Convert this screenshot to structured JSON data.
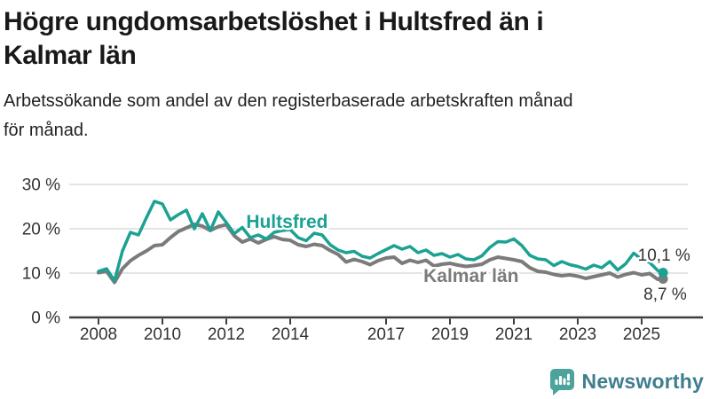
{
  "header": {
    "title_line1": "Högre ungdomsarbetslöshet i Hultsfred än i",
    "title_line2": "Kalmar län",
    "subtitle_line1": "Arbetssökande som andel av den registerbaserade arbetskraften månad",
    "subtitle_line2": "för månad."
  },
  "footer": {
    "brand_name": "Newsworthy",
    "brand_text_color": "#3f7e8e",
    "brand_icon_color": "#4ba39b"
  },
  "chart_data": {
    "type": "line",
    "title": "Högre ungdomsarbetslöshet i Hultsfred än i Kalmar län",
    "subtitle": "Arbetssökande som andel av den registerbaserade arbetskraften månad för månad.",
    "xlabel": "",
    "ylabel": "",
    "ylim": [
      0,
      30
    ],
    "grid": "horizontal",
    "colors": {
      "grid": "#dcdcdc",
      "axis": "#3f3f3f",
      "tick_text": "#333333"
    },
    "y_ticks": [
      {
        "value": 0,
        "label": "0 %"
      },
      {
        "value": 10,
        "label": "10 %"
      },
      {
        "value": 20,
        "label": "20 %"
      },
      {
        "value": 30,
        "label": "30 %"
      }
    ],
    "x_ticks": [
      {
        "value": 2008,
        "label": "2008"
      },
      {
        "value": 2010,
        "label": "2010"
      },
      {
        "value": 2012,
        "label": "2012"
      },
      {
        "value": 2014,
        "label": "2014"
      },
      {
        "value": 2017,
        "label": "2017"
      },
      {
        "value": 2019,
        "label": "2019"
      },
      {
        "value": 2021,
        "label": "2021"
      },
      {
        "value": 2023,
        "label": "2023"
      },
      {
        "value": 2025,
        "label": "2025"
      }
    ],
    "x": [
      2008,
      2008.25,
      2008.5,
      2008.75,
      2009,
      2009.25,
      2009.5,
      2009.75,
      2010,
      2010.25,
      2010.5,
      2010.75,
      2011,
      2011.25,
      2011.5,
      2011.75,
      2012,
      2012.25,
      2012.5,
      2012.75,
      2013,
      2013.25,
      2013.5,
      2013.75,
      2014,
      2014.25,
      2014.5,
      2014.75,
      2015,
      2015.25,
      2015.5,
      2015.75,
      2016,
      2016.25,
      2016.5,
      2016.75,
      2017,
      2017.25,
      2017.5,
      2017.75,
      2018,
      2018.25,
      2018.5,
      2018.75,
      2019,
      2019.25,
      2019.5,
      2019.75,
      2020,
      2020.25,
      2020.5,
      2020.75,
      2021,
      2021.25,
      2021.5,
      2021.75,
      2022,
      2022.25,
      2022.5,
      2022.75,
      2023,
      2023.25,
      2023.5,
      2023.75,
      2024,
      2024.25,
      2024.5,
      2024.75,
      2025,
      2025.25,
      2025.5,
      2025.67
    ],
    "series": [
      {
        "name": "Hultsfred",
        "color": "#1ba293",
        "line_width": 3.5,
        "end_value_label": "10,1 %",
        "values": [
          10.4,
          11.0,
          8.3,
          15.0,
          19.2,
          18.6,
          22.5,
          26.2,
          25.6,
          22.0,
          23.2,
          24.2,
          20.0,
          23.4,
          19.6,
          23.8,
          21.4,
          18.9,
          20.3,
          18.0,
          18.6,
          17.7,
          19.2,
          19.6,
          19.8,
          18.0,
          17.3,
          19.0,
          18.6,
          16.4,
          15.2,
          14.6,
          14.9,
          13.8,
          13.4,
          14.4,
          15.3,
          16.2,
          15.4,
          16.0,
          14.6,
          15.2,
          14.0,
          14.4,
          13.6,
          14.2,
          13.2,
          13.0,
          13.9,
          15.8,
          17.1,
          17.0,
          17.7,
          16.2,
          14.0,
          13.2,
          13.0,
          11.7,
          12.6,
          11.9,
          11.5,
          10.9,
          11.8,
          11.2,
          12.6,
          10.7,
          12.1,
          14.5,
          13.1,
          12.4,
          10.6,
          10.1
        ]
      },
      {
        "name": "Kalmar län",
        "color": "#7b7b7b",
        "line_width": 4,
        "end_value_label": "8,7 %",
        "values": [
          10.1,
          10.4,
          7.9,
          11.0,
          12.8,
          14.0,
          15.0,
          16.2,
          16.4,
          18.0,
          19.4,
          20.2,
          21.0,
          20.6,
          19.6,
          20.5,
          20.9,
          18.4,
          17.0,
          17.7,
          16.8,
          17.6,
          18.2,
          17.6,
          17.4,
          16.4,
          16.0,
          16.5,
          16.2,
          15.1,
          14.2,
          12.5,
          13.1,
          12.6,
          11.9,
          12.8,
          13.4,
          13.6,
          12.2,
          12.9,
          12.4,
          12.9,
          11.6,
          12.0,
          12.2,
          11.8,
          11.5,
          11.7,
          12.0,
          13.0,
          13.6,
          13.3,
          13.0,
          12.6,
          11.2,
          10.4,
          10.2,
          9.7,
          9.4,
          9.6,
          9.3,
          8.8,
          9.2,
          9.6,
          10.0,
          9.1,
          9.7,
          10.1,
          9.6,
          9.9,
          8.6,
          8.7
        ]
      }
    ],
    "annotations": [
      {
        "text": "Hultsfred",
        "x": 2012.62,
        "y": 20.2,
        "color": "#1ba293",
        "size": 21,
        "weight": "bold"
      },
      {
        "text": "Kalmar län",
        "x": 2018.17,
        "y": 8.0,
        "color": "#7b7b7b",
        "size": 21,
        "weight": "bold"
      },
      {
        "text": "10,1 %",
        "x": 2024.88,
        "y": 12.8,
        "color": "#333333",
        "size": 19,
        "weight": "normal"
      },
      {
        "text": "8,7 %",
        "x": 2025.06,
        "y": 4.0,
        "color": "#333333",
        "size": 19,
        "weight": "normal"
      }
    ]
  }
}
